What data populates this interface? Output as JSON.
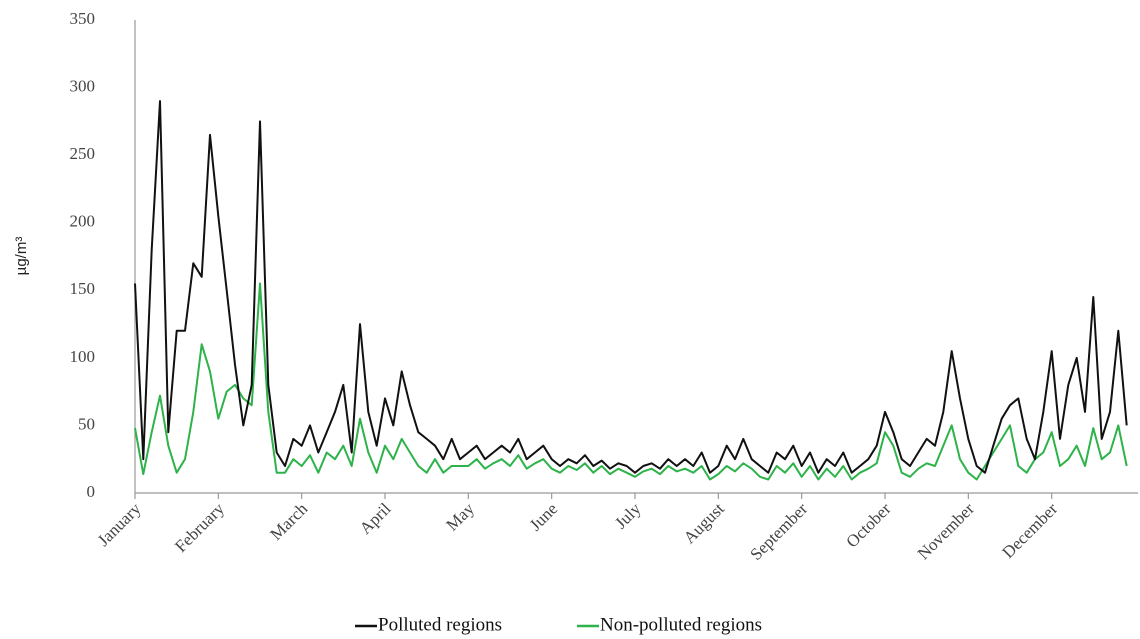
{
  "chart_data": {
    "type": "line",
    "y_label": "µg/m³",
    "categories": [
      "January",
      null,
      null,
      null,
      null,
      null,
      null,
      null,
      null,
      null,
      "February",
      null,
      null,
      null,
      null,
      null,
      null,
      null,
      null,
      null,
      "March",
      null,
      null,
      null,
      null,
      null,
      null,
      null,
      null,
      null,
      "April",
      null,
      null,
      null,
      null,
      null,
      null,
      null,
      null,
      null,
      "May",
      null,
      null,
      null,
      null,
      null,
      null,
      null,
      null,
      null,
      "June",
      null,
      null,
      null,
      null,
      null,
      null,
      null,
      null,
      null,
      "July",
      null,
      null,
      null,
      null,
      null,
      null,
      null,
      null,
      null,
      "August",
      null,
      null,
      null,
      null,
      null,
      null,
      null,
      null,
      null,
      "September",
      null,
      null,
      null,
      null,
      null,
      null,
      null,
      null,
      null,
      "October",
      null,
      null,
      null,
      null,
      null,
      null,
      null,
      null,
      null,
      "November",
      null,
      null,
      null,
      null,
      null,
      null,
      null,
      null,
      null,
      "December",
      null,
      null,
      null,
      null,
      null,
      null,
      null,
      null,
      null
    ],
    "series": [
      {
        "name": "Polluted regions",
        "color": "#111111",
        "values": [
          155,
          25,
          180,
          290,
          45,
          120,
          120,
          170,
          160,
          265,
          205,
          150,
          95,
          50,
          80,
          275,
          80,
          30,
          20,
          40,
          35,
          50,
          30,
          45,
          60,
          80,
          30,
          125,
          60,
          35,
          70,
          50,
          90,
          65,
          45,
          40,
          35,
          25,
          40,
          25,
          30,
          35,
          25,
          30,
          35,
          30,
          40,
          25,
          30,
          35,
          25,
          20,
          25,
          22,
          28,
          20,
          24,
          18,
          22,
          20,
          15,
          20,
          22,
          18,
          25,
          20,
          25,
          20,
          30,
          15,
          20,
          35,
          25,
          40,
          25,
          20,
          15,
          30,
          25,
          35,
          20,
          30,
          15,
          25,
          20,
          30,
          15,
          20,
          25,
          35,
          60,
          45,
          25,
          20,
          30,
          40,
          35,
          60,
          105,
          70,
          40,
          20,
          15,
          35,
          55,
          65,
          70,
          40,
          25,
          60,
          105,
          40,
          80,
          100,
          60,
          145,
          40,
          60,
          120,
          50
        ]
      },
      {
        "name": "Non-polluted regions",
        "color": "#2db34a",
        "values": [
          48,
          14,
          45,
          72,
          35,
          15,
          25,
          60,
          110,
          90,
          55,
          75,
          80,
          70,
          65,
          155,
          60,
          15,
          15,
          25,
          20,
          28,
          15,
          30,
          25,
          35,
          20,
          55,
          30,
          15,
          35,
          25,
          40,
          30,
          20,
          15,
          25,
          15,
          20,
          20,
          20,
          25,
          18,
          22,
          25,
          20,
          28,
          18,
          22,
          25,
          18,
          15,
          20,
          17,
          22,
          15,
          20,
          14,
          18,
          15,
          12,
          16,
          18,
          14,
          20,
          16,
          18,
          15,
          20,
          10,
          14,
          20,
          16,
          22,
          18,
          12,
          10,
          20,
          15,
          22,
          12,
          20,
          10,
          18,
          12,
          20,
          10,
          15,
          18,
          22,
          45,
          35,
          15,
          12,
          18,
          22,
          20,
          35,
          50,
          25,
          15,
          10,
          20,
          30,
          40,
          50,
          20,
          15,
          25,
          30,
          45,
          20,
          25,
          35,
          20,
          48,
          25,
          30,
          50,
          20
        ]
      }
    ],
    "ylim": [
      0,
      350
    ],
    "yticks": [
      0,
      50,
      100,
      150,
      200,
      250,
      300,
      350
    ],
    "grid": false
  }
}
